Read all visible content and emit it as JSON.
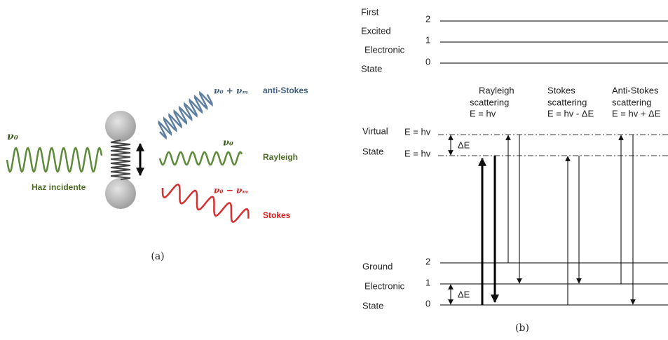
{
  "panel_a": {
    "incident": {
      "label": "ν₀",
      "caption": "Haz incidente"
    },
    "scattered": [
      {
        "label": "ν₀ + νₘ",
        "name": "anti-Stokes"
      },
      {
        "label": "ν₀",
        "name": "Rayleigh"
      },
      {
        "label": "ν₀ − νₘ",
        "name": "Stokes"
      }
    ],
    "caption": "(a)"
  },
  "panel_b": {
    "upper_state": {
      "lines": [
        "First",
        "Excited",
        "Electronic",
        "State"
      ],
      "levels": [
        "2",
        "1",
        "0"
      ]
    },
    "columns": [
      {
        "lines": [
          "Rayleigh",
          "scattering",
          "E = hv"
        ]
      },
      {
        "lines": [
          "Stokes",
          "scattering",
          "E = hv - ΔE"
        ]
      },
      {
        "lines": [
          "Anti-Stokes",
          "scattering",
          "E = hv + ΔE"
        ]
      }
    ],
    "virtual_state": {
      "lines": [
        "Virtual",
        "State"
      ],
      "energies": [
        "E = hv",
        "E = hv"
      ],
      "gap": "ΔE"
    },
    "ground_state": {
      "lines": [
        "Ground",
        "Electronic",
        "State"
      ],
      "levels": [
        "2",
        "1",
        "0"
      ],
      "gap": "ΔE"
    },
    "caption": "(b)"
  }
}
